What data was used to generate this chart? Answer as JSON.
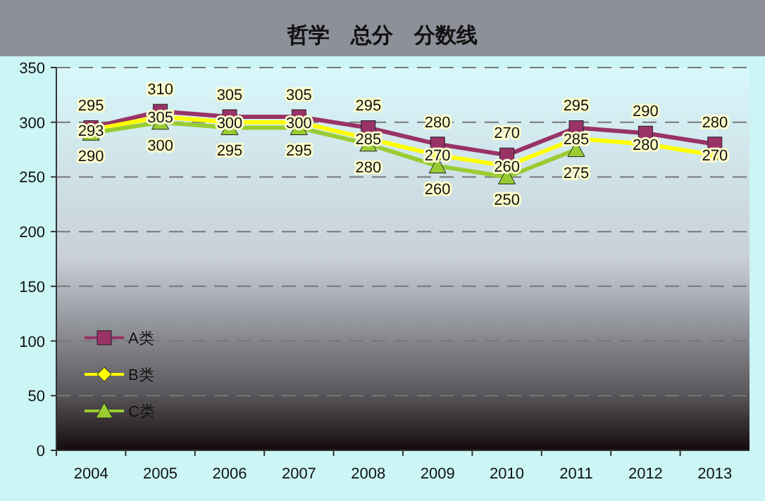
{
  "chart_data": {
    "type": "line",
    "title": "哲学　总分　分数线",
    "categories": [
      "2004",
      "2005",
      "2006",
      "2007",
      "2008",
      "2009",
      "2010",
      "2011",
      "2012",
      "2013"
    ],
    "series": [
      {
        "name": "A类",
        "color": "#993366",
        "marker": "square",
        "values": [
          295,
          310,
          305,
          305,
          295,
          280,
          270,
          295,
          290,
          280
        ]
      },
      {
        "name": "B类",
        "color": "#ffff00",
        "marker": "diamond",
        "values": [
          293,
          305,
          300,
          300,
          285,
          270,
          260,
          285,
          280,
          270
        ]
      },
      {
        "name": "C类",
        "color": "#99cc33",
        "marker": "triangle",
        "values": [
          290,
          300,
          295,
          295,
          280,
          260,
          250,
          275,
          null,
          null
        ]
      }
    ],
    "ylim": [
      0,
      350
    ],
    "yticks": [
      0,
      50,
      100,
      150,
      200,
      250,
      300,
      350
    ],
    "grid": "y",
    "legend": "bottom left",
    "data_labels": true
  }
}
